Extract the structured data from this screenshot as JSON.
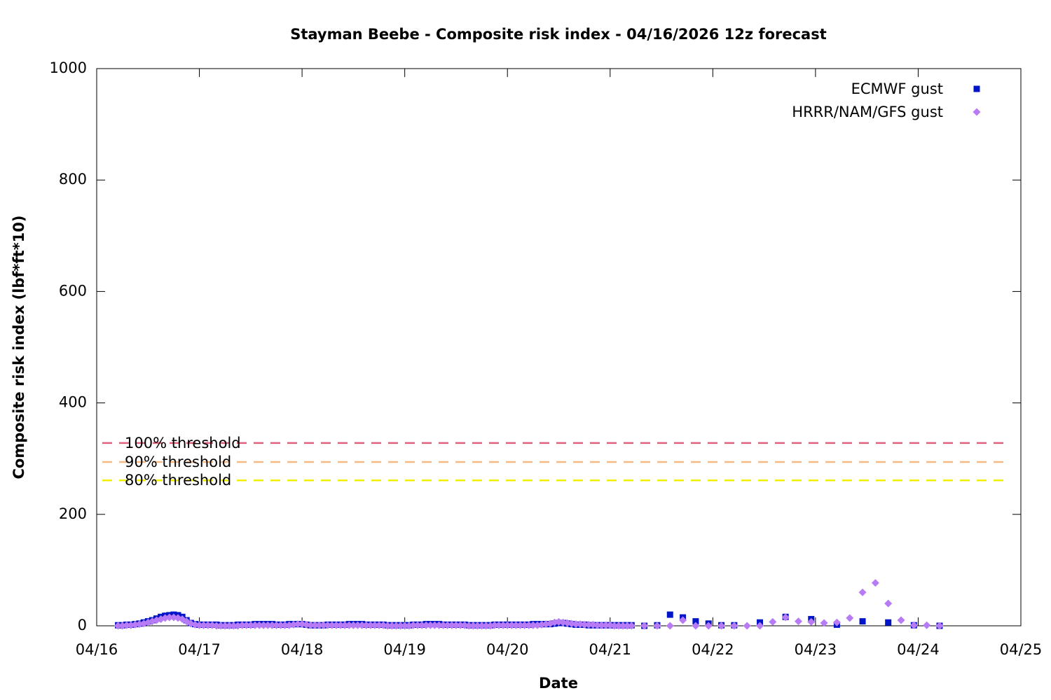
{
  "chart_data": {
    "type": "scatter",
    "title": "Stayman Beebe - Composite risk index - 04/16/2026 12z forecast",
    "xlabel": "Date",
    "ylabel": "Composite risk index (lbf*ft*10)",
    "xlim": [
      0,
      216
    ],
    "xticks": [
      {
        "value": 0,
        "label": "04/16"
      },
      {
        "value": 24,
        "label": "04/17"
      },
      {
        "value": 48,
        "label": "04/18"
      },
      {
        "value": 72,
        "label": "04/19"
      },
      {
        "value": 96,
        "label": "04/20"
      },
      {
        "value": 120,
        "label": "04/21"
      },
      {
        "value": 144,
        "label": "04/22"
      },
      {
        "value": 168,
        "label": "04/23"
      },
      {
        "value": 192,
        "label": "04/24"
      },
      {
        "value": 216,
        "label": "04/25"
      }
    ],
    "ylim": [
      0,
      1000
    ],
    "yticks": [
      0,
      200,
      400,
      600,
      800,
      1000
    ],
    "legend": "top right",
    "series": [
      {
        "name": "ECMWF gust",
        "color": "#0015c8",
        "marker": "square",
        "x": [
          5,
          6,
          7,
          8,
          9,
          10,
          11,
          12,
          13,
          14,
          15,
          16,
          17,
          18,
          19,
          20,
          21,
          22,
          23,
          24,
          25,
          26,
          27,
          28,
          29,
          30,
          31,
          32,
          33,
          34,
          35,
          36,
          37,
          38,
          39,
          40,
          41,
          42,
          43,
          44,
          45,
          46,
          47,
          48,
          49,
          50,
          51,
          52,
          53,
          54,
          55,
          56,
          57,
          58,
          59,
          60,
          61,
          62,
          63,
          64,
          65,
          66,
          67,
          68,
          69,
          70,
          71,
          72,
          73,
          74,
          75,
          76,
          77,
          78,
          79,
          80,
          81,
          82,
          83,
          84,
          85,
          86,
          87,
          88,
          89,
          90,
          91,
          92,
          93,
          94,
          95,
          96,
          97,
          98,
          99,
          100,
          101,
          102,
          103,
          104,
          105,
          106,
          107,
          108,
          109,
          110,
          111,
          112,
          113,
          114,
          115,
          116,
          117,
          118,
          119,
          120,
          121,
          122,
          123,
          124,
          125,
          128,
          131,
          134,
          137,
          140,
          143,
          146,
          149,
          155,
          161,
          167,
          173,
          179,
          185,
          191,
          197
        ],
        "values": [
          1,
          1,
          2,
          2,
          3,
          4,
          6,
          8,
          10,
          13,
          16,
          18,
          19,
          20,
          19,
          16,
          10,
          5,
          3,
          2,
          2,
          2,
          2,
          2,
          1,
          1,
          1,
          1,
          2,
          2,
          2,
          2,
          3,
          3,
          3,
          3,
          3,
          2,
          2,
          2,
          3,
          3,
          3,
          3,
          2,
          1,
          1,
          1,
          1,
          2,
          2,
          2,
          2,
          2,
          3,
          3,
          3,
          3,
          2,
          2,
          2,
          2,
          2,
          1,
          1,
          1,
          1,
          1,
          1,
          2,
          2,
          2,
          3,
          3,
          3,
          3,
          2,
          2,
          2,
          2,
          2,
          2,
          1,
          1,
          1,
          1,
          1,
          1,
          2,
          2,
          2,
          2,
          2,
          2,
          2,
          2,
          2,
          3,
          3,
          3,
          3,
          3,
          4,
          5,
          5,
          4,
          3,
          2,
          2,
          2,
          1,
          1,
          1,
          1,
          1,
          1,
          1,
          1,
          1,
          1,
          1,
          0,
          1,
          20,
          15,
          8,
          4,
          1,
          1,
          6,
          16,
          12,
          2,
          8,
          6,
          1,
          0
        ]
      },
      {
        "name": "HRRR/NAM/GFS gust",
        "color": "#b77cf5",
        "marker": "diamond",
        "x": [
          5,
          6,
          7,
          8,
          9,
          10,
          11,
          12,
          13,
          14,
          15,
          16,
          17,
          18,
          19,
          20,
          21,
          22,
          23,
          24,
          25,
          26,
          27,
          28,
          29,
          30,
          31,
          32,
          33,
          34,
          35,
          36,
          37,
          38,
          39,
          40,
          41,
          42,
          43,
          44,
          45,
          46,
          47,
          48,
          49,
          50,
          51,
          52,
          53,
          54,
          55,
          56,
          57,
          58,
          59,
          60,
          61,
          62,
          63,
          64,
          65,
          66,
          67,
          68,
          69,
          70,
          71,
          72,
          73,
          74,
          75,
          76,
          77,
          78,
          79,
          80,
          81,
          82,
          83,
          84,
          85,
          86,
          87,
          88,
          89,
          90,
          91,
          92,
          93,
          94,
          95,
          96,
          97,
          98,
          99,
          100,
          101,
          102,
          103,
          104,
          105,
          106,
          107,
          108,
          109,
          110,
          111,
          112,
          113,
          114,
          115,
          116,
          117,
          118,
          119,
          120,
          121,
          122,
          123,
          124,
          125,
          128,
          131,
          134,
          137,
          140,
          143,
          146,
          149,
          152,
          155,
          158,
          161,
          164,
          167,
          170,
          173,
          176,
          179,
          182,
          185,
          188,
          191,
          194,
          197
        ],
        "values": [
          0,
          0,
          1,
          1,
          2,
          3,
          4,
          6,
          8,
          10,
          12,
          14,
          15,
          15,
          14,
          12,
          8,
          4,
          2,
          1,
          1,
          1,
          1,
          0,
          0,
          0,
          0,
          0,
          0,
          1,
          1,
          1,
          1,
          1,
          1,
          1,
          1,
          1,
          1,
          1,
          1,
          2,
          3,
          3,
          2,
          1,
          1,
          1,
          1,
          1,
          1,
          1,
          1,
          1,
          1,
          1,
          1,
          1,
          1,
          1,
          1,
          1,
          1,
          0,
          0,
          0,
          0,
          0,
          0,
          1,
          1,
          1,
          1,
          1,
          1,
          1,
          1,
          1,
          1,
          1,
          1,
          1,
          0,
          0,
          0,
          0,
          0,
          0,
          1,
          1,
          1,
          1,
          1,
          1,
          1,
          1,
          1,
          1,
          1,
          2,
          3,
          4,
          6,
          7,
          6,
          5,
          4,
          3,
          3,
          2,
          2,
          2,
          1,
          1,
          1,
          1,
          0,
          0,
          0,
          0,
          0,
          0,
          0,
          0,
          10,
          0,
          0,
          0,
          0,
          0,
          0,
          7,
          15,
          8,
          7,
          5,
          6,
          14,
          60,
          77,
          40,
          10,
          1,
          1,
          0
        ]
      }
    ],
    "thresholds": [
      {
        "name": "100% threshold",
        "value": 328,
        "color": "#e0607e"
      },
      {
        "name": "90% threshold",
        "value": 294,
        "color": "#f4b985"
      },
      {
        "name": "80% threshold",
        "value": 261,
        "color": "#f0f000"
      }
    ]
  }
}
